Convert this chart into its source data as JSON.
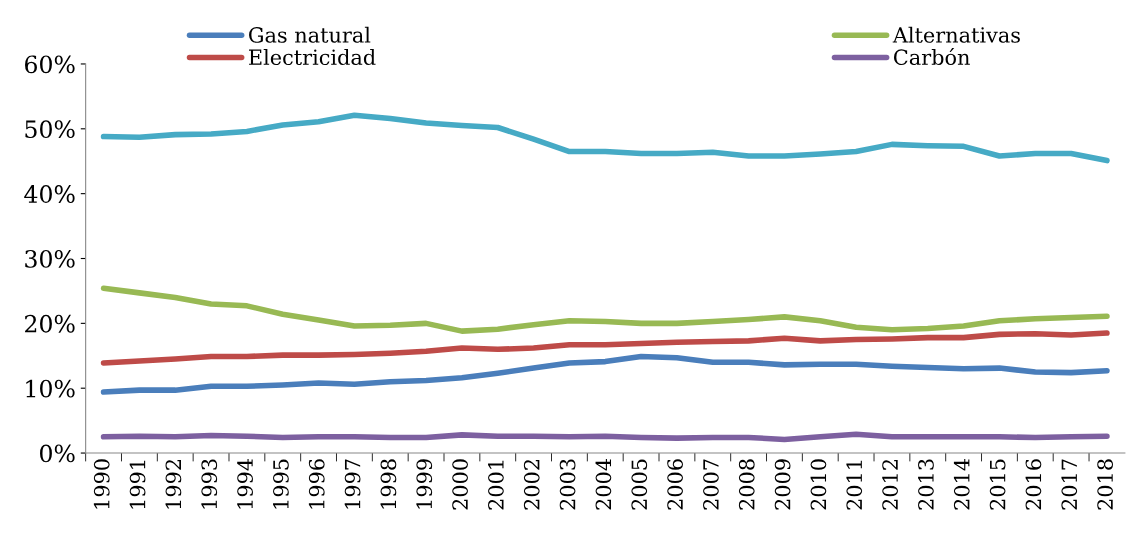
{
  "chart_data": {
    "type": "line",
    "categories": [
      "1990",
      "1991",
      "1992",
      "1993",
      "1994",
      "1995",
      "1996",
      "1997",
      "1998",
      "1999",
      "2000",
      "2001",
      "2002",
      "2003",
      "2004",
      "2005",
      "2006",
      "2007",
      "2008",
      "2009",
      "2010",
      "2011",
      "2012",
      "2013",
      "2014",
      "2015",
      "2016",
      "2017",
      "2018"
    ],
    "series": [
      {
        "name": "Gas natural",
        "color": "#4a7ebb",
        "values": [
          9.4,
          9.7,
          9.7,
          10.3,
          10.3,
          10.5,
          10.8,
          10.6,
          11.0,
          11.2,
          11.6,
          12.3,
          13.1,
          13.9,
          14.1,
          14.9,
          14.7,
          14.0,
          14.0,
          13.6,
          13.7,
          13.7,
          13.4,
          13.2,
          13.0,
          13.1,
          12.5,
          12.4,
          12.7
        ]
      },
      {
        "name": "Electricidad",
        "color": "#be4b48",
        "values": [
          13.9,
          14.2,
          14.5,
          14.9,
          14.9,
          15.1,
          15.1,
          15.2,
          15.4,
          15.7,
          16.2,
          16.0,
          16.2,
          16.7,
          16.7,
          16.9,
          17.1,
          17.2,
          17.3,
          17.7,
          17.3,
          17.5,
          17.6,
          17.8,
          17.8,
          18.3,
          18.4,
          18.2,
          18.5
        ]
      },
      {
        "name": "Alternativas",
        "color": "#98b954",
        "values": [
          25.4,
          24.7,
          24.0,
          23.0,
          22.7,
          21.4,
          20.5,
          19.6,
          19.7,
          20.0,
          18.8,
          19.1,
          19.8,
          20.4,
          20.3,
          20.0,
          20.0,
          20.3,
          20.6,
          21.0,
          20.4,
          19.4,
          19.0,
          19.2,
          19.6,
          20.4,
          20.7,
          20.9,
          21.1
        ]
      },
      {
        "name": "Carbón",
        "color": "#7d60a0",
        "values": [
          2.5,
          2.6,
          2.5,
          2.7,
          2.6,
          2.4,
          2.5,
          2.5,
          2.4,
          2.4,
          2.8,
          2.6,
          2.6,
          2.5,
          2.6,
          2.4,
          2.3,
          2.4,
          2.4,
          2.1,
          2.5,
          2.9,
          2.5,
          2.5,
          2.5,
          2.5,
          2.4,
          2.5,
          2.6
        ]
      },
      {
        "color": "#46aac5",
        "values": [
          48.8,
          48.7,
          49.1,
          49.2,
          49.6,
          50.6,
          51.1,
          52.1,
          51.6,
          50.9,
          50.5,
          50.2,
          48.4,
          46.5,
          46.5,
          46.2,
          46.2,
          46.4,
          45.8,
          45.8,
          46.1,
          46.5,
          47.6,
          47.4,
          47.3,
          45.8,
          46.2,
          46.2,
          45.1
        ]
      }
    ],
    "ylim": [
      0,
      60
    ],
    "yticks": [
      {
        "value": 0,
        "label": "0%"
      },
      {
        "value": 10,
        "label": "10%"
      },
      {
        "value": 20,
        "label": "20%"
      },
      {
        "value": 30,
        "label": "30%"
      },
      {
        "value": 40,
        "label": "40%"
      },
      {
        "value": 50,
        "label": "50%"
      },
      {
        "value": 60,
        "label": "60%"
      }
    ],
    "grid": false,
    "legend": "top",
    "marker": "none",
    "line_style": "solid"
  }
}
